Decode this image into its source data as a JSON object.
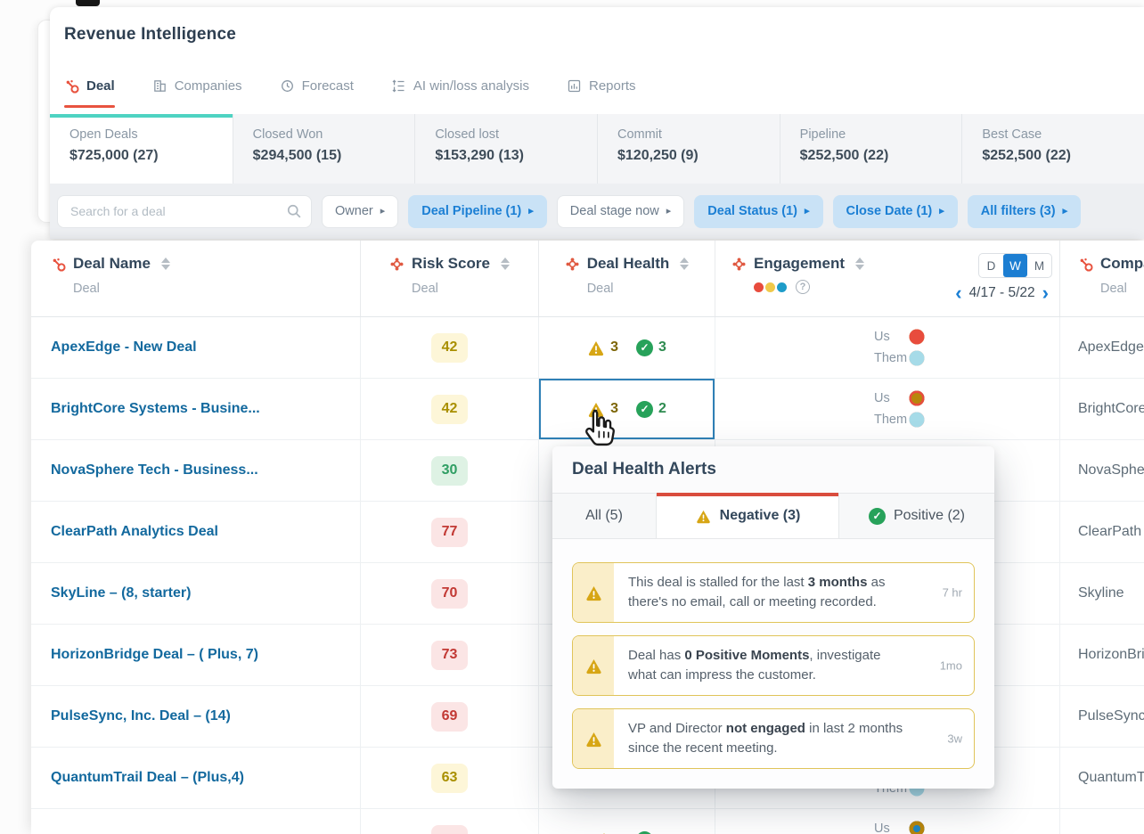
{
  "app": {
    "title": "Revenue Intelligence"
  },
  "nav": {
    "tabs": [
      {
        "label": "Deal",
        "icon": "hubspot-sprocket",
        "active": true
      },
      {
        "label": "Companies",
        "icon": "buildings",
        "active": false
      },
      {
        "label": "Forecast",
        "icon": "clock",
        "active": false
      },
      {
        "label": "AI win/loss analysis",
        "icon": "win-loss-list",
        "active": false
      },
      {
        "label": "Reports",
        "icon": "bar-chart",
        "active": false
      }
    ]
  },
  "summary_cards": [
    {
      "label": "Open Deals",
      "value": "$725,000 (27)",
      "active": true
    },
    {
      "label": "Closed Won",
      "value": "$294,500 (15)",
      "active": false
    },
    {
      "label": "Closed lost",
      "value": "$153,290 (13)",
      "active": false
    },
    {
      "label": "Commit",
      "value": "$120,250 (9)",
      "active": false
    },
    {
      "label": "Pipeline",
      "value": "$252,500 (22)",
      "active": false
    },
    {
      "label": "Best Case",
      "value": "$252,500 (22)",
      "active": false
    }
  ],
  "filters": {
    "search_placeholder": "Search for a deal",
    "chips": [
      {
        "label": "Owner",
        "active": false
      },
      {
        "label": "Deal Pipeline (1)",
        "active": true
      },
      {
        "label": "Deal stage now",
        "active": false
      },
      {
        "label": "Deal Status (1)",
        "active": true
      },
      {
        "label": "Close Date (1)",
        "active": true
      },
      {
        "label": "All filters (3)",
        "active": true
      }
    ]
  },
  "table": {
    "columns": {
      "deal_name": {
        "title": "Deal Name",
        "subtitle": "Deal"
      },
      "risk_score": {
        "title": "Risk Score",
        "subtitle": "Deal"
      },
      "deal_health": {
        "title": "Deal Health",
        "subtitle": "Deal"
      },
      "engagement": {
        "title": "Engagement"
      },
      "company": {
        "title": "Company",
        "subtitle": "Deal"
      }
    },
    "engagement_controls": {
      "periods": [
        {
          "label": "D",
          "active": false
        },
        {
          "label": "W",
          "active": true
        },
        {
          "label": "M",
          "active": false
        }
      ],
      "date_range": "4/17 - 5/22",
      "row_labels": {
        "us": "Us",
        "them": "Them"
      }
    },
    "rows": [
      {
        "name": "ApexEdge - New Deal",
        "company": "ApexEdge",
        "risk": {
          "value": "42",
          "tone": "yellow"
        },
        "health": {
          "neg": "3",
          "pos": "3",
          "selected": false
        },
        "eng": {
          "us": [
            [
              2,
              "s",
              "red"
            ],
            [
              5,
              "m",
              "olive"
            ],
            [
              9,
              "m",
              "blue"
            ],
            [
              49,
              "l",
              "olive"
            ],
            [
              54,
              "s",
              "blue"
            ],
            [
              92,
              "l",
              "red"
            ]
          ],
          "them": [
            [
              2,
              "t",
              "pink"
            ],
            [
              6,
              "l",
              "yellow"
            ],
            [
              42,
              "l",
              "pink"
            ],
            [
              46,
              "m",
              "yellow"
            ],
            [
              50,
              "t",
              "lightblue"
            ],
            [
              80,
              "l",
              "lightblue"
            ]
          ]
        }
      },
      {
        "name": "BrightCore Systems - Busine...",
        "company": "BrightCore",
        "risk": {
          "value": "42",
          "tone": "yellow"
        },
        "health": {
          "neg": "3",
          "pos": "2",
          "selected": true
        },
        "eng": {
          "us": [
            [
              3,
              "l",
              "red"
            ],
            [
              6,
              "m",
              "olive"
            ],
            [
              9,
              "s",
              "blue"
            ],
            [
              24,
              "s",
              "red"
            ],
            [
              27,
              "m",
              "blue"
            ],
            [
              31,
              "l",
              "blue"
            ],
            [
              49,
              "l",
              "olive"
            ],
            [
              54,
              "s",
              "blue"
            ],
            [
              90,
              "l",
              "red"
            ],
            [
              94,
              "m",
              "olive"
            ]
          ],
          "them": [
            [
              3,
              "l",
              "pink"
            ],
            [
              7,
              "m",
              "yellow"
            ],
            [
              11,
              "t",
              "lightblue"
            ],
            [
              42,
              "l",
              "pink"
            ],
            [
              46,
              "m",
              "yellow"
            ],
            [
              49,
              "t",
              "lightblue"
            ],
            [
              80,
              "l",
              "lightblue"
            ]
          ]
        }
      },
      {
        "name": "NovaSphere Tech - Business...",
        "company": "NovaSphere",
        "risk": {
          "value": "30",
          "tone": "green"
        },
        "health": null,
        "eng": {
          "us": [
            [
              85,
              "l",
              "red"
            ],
            [
              90,
              "m",
              "olive"
            ]
          ],
          "them": []
        }
      },
      {
        "name": "ClearPath Analytics Deal",
        "company": "ClearPath",
        "risk": {
          "value": "77",
          "tone": "red"
        },
        "health": null,
        "eng": {
          "us": [
            [
              85,
              "l",
              "red"
            ],
            [
              90,
              "m",
              "olive"
            ]
          ],
          "them": []
        }
      },
      {
        "name": "SkyLine – (8, starter)",
        "company": "Skyline",
        "risk": {
          "value": "70",
          "tone": "red"
        },
        "health": null,
        "eng": {
          "us": [
            [
              82,
              "l",
              "red"
            ]
          ],
          "them": []
        }
      },
      {
        "name": "HorizonBridge Deal – ( Plus, 7)",
        "company": "HorizonBridge",
        "risk": {
          "value": "73",
          "tone": "red"
        },
        "health": null,
        "eng": {
          "us": [
            [
              85,
              "l",
              "red"
            ],
            [
              90,
              "m",
              "olive"
            ]
          ],
          "them": []
        }
      },
      {
        "name": "PulseSync, Inc. Deal – (14)",
        "company": "PulseSync",
        "risk": {
          "value": "69",
          "tone": "red"
        },
        "health": null,
        "eng": {
          "us": [
            [
              82,
              "l",
              "red"
            ]
          ],
          "them": []
        }
      },
      {
        "name": "QuantumTrail Deal – (Plus,4)",
        "company": "QuantumTrail",
        "risk": {
          "value": "63",
          "tone": "yellow"
        },
        "health": null,
        "eng": {
          "us": [
            [
              82,
              "l",
              "red"
            ]
          ],
          "them": [
            [
              82,
              "l",
              "lightblue"
            ]
          ]
        }
      },
      {
        "name": "",
        "company": "",
        "risk": {
          "value": "",
          "tone": "red"
        },
        "health": {
          "neg": "",
          "pos": "",
          "selected": false
        },
        "eng": {
          "us": [
            [
              2,
              "l",
              "red"
            ],
            [
              5,
              "m",
              "olive"
            ],
            [
              8,
              "s",
              "blue"
            ],
            [
              25,
              "s",
              "red"
            ],
            [
              28,
              "m",
              "blue"
            ],
            [
              31,
              "l",
              "blue"
            ],
            [
              52,
              "l",
              "olive"
            ],
            [
              57,
              "s",
              "blue"
            ]
          ],
          "them": []
        }
      }
    ]
  },
  "popup": {
    "title": "Deal Health Alerts",
    "tabs": [
      {
        "label": "All (5)",
        "active": false
      },
      {
        "label": "Negative (3)",
        "active": true,
        "icon": "warning-triangle"
      },
      {
        "label": "Positive (2)",
        "active": false,
        "icon": "check-circle"
      }
    ],
    "alerts": [
      {
        "pre": "This deal is stalled for the last ",
        "bold": "3 months",
        "post": " as there's no email, call or meeting recorded.",
        "time": "7 hr"
      },
      {
        "pre": "Deal has ",
        "bold": "0 Positive Moments",
        "post": ", investigate what can impress the customer.",
        "time": "1mo"
      },
      {
        "pre": "VP and Director ",
        "bold": "not engaged",
        "post": " in last 2 months since the recent meeting.",
        "time": "3w"
      }
    ]
  },
  "colors": {
    "accent_red": "#e8533f",
    "link_blue": "#13699e",
    "teal_bar": "#4ed3c2",
    "chip_blue_bg": "#c9e2f6",
    "chip_blue_text": "#1b7fd4",
    "warning_gold": "#d7a615",
    "positive_green": "#27a25a",
    "dot_red": "#e84c3d",
    "dot_olive": "#b8860b",
    "dot_blue": "#1e86c2",
    "dot_pink": "#f2a19a",
    "dot_yellow": "#f6d46a",
    "dot_lightblue": "#a6dbe8",
    "legend": [
      "#e84c3d",
      "#f0c94a",
      "#1e9cc9"
    ]
  }
}
